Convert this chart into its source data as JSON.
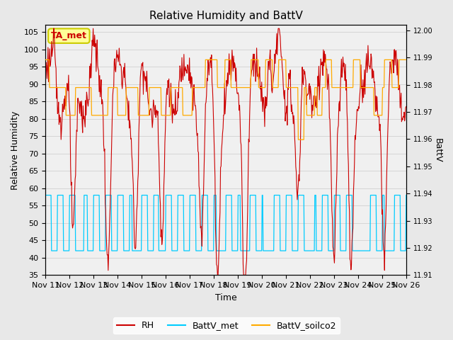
{
  "title": "Relative Humidity and BattV",
  "xlabel": "Time",
  "ylabel_left": "Relative Humidity",
  "ylabel_right": "BattV",
  "annotation_text": "TA_met",
  "annotation_bg": "#ffff99",
  "annotation_border": "#cccc00",
  "ylim_left": [
    35,
    107
  ],
  "ylim_right": [
    11.91,
    12.002
  ],
  "yticks_left": [
    35,
    40,
    45,
    50,
    55,
    60,
    65,
    70,
    75,
    80,
    85,
    90,
    95,
    100,
    105
  ],
  "yticks_right": [
    11.91,
    11.92,
    11.93,
    11.94,
    11.95,
    11.96,
    11.97,
    11.98,
    11.99,
    12.0
  ],
  "xtick_labels": [
    "Nov 11",
    "Nov 12",
    "Nov 13",
    "Nov 14",
    "Nov 15",
    "Nov 16",
    "Nov 17",
    "Nov 18",
    "Nov 19",
    "Nov 20",
    "Nov 21",
    "Nov 22",
    "Nov 23",
    "Nov 24",
    "Nov 25",
    "Nov 26"
  ],
  "color_rh": "#cc0000",
  "color_battv_met": "#00ccff",
  "color_battv_soilco2": "#ffaa00",
  "grid_color": "#cccccc",
  "bg_color": "#e8e8e8",
  "plot_bg": "#f0f0f0",
  "legend_labels": [
    "RH",
    "BattV_met",
    "BattV_soilco2"
  ],
  "n_days": 15,
  "rh_high": 89,
  "rh_amplitude": 8,
  "battv_met_high": 58,
  "battv_met_low": 42,
  "battv_soilco2_high": 97,
  "battv_soilco2_low": 81,
  "battv_soilco2_mid": 89
}
